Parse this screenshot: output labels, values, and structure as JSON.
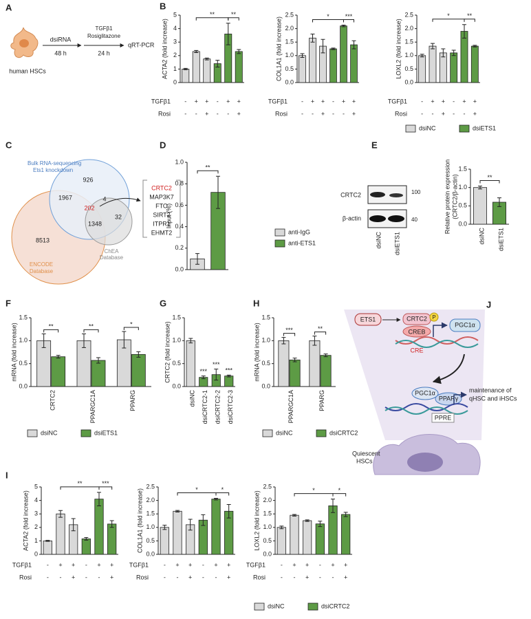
{
  "panel_labels": [
    "A",
    "B",
    "C",
    "D",
    "E",
    "F",
    "G",
    "H",
    "I",
    "J"
  ],
  "panel_a": {
    "step1": "dsiRNA",
    "time1": "48 h",
    "treatment": [
      "TGFβ1",
      "Rosiglitazone"
    ],
    "time2": "24 h",
    "readout": "qRT-PCR",
    "cells": "human HSCs"
  },
  "panel_c": {
    "bulk_label": [
      "Bulk RNA-sequencing",
      "Ets1 knockdown"
    ],
    "encode_label": [
      "ENCODE",
      "Database"
    ],
    "chea_label": [
      "ChEA",
      "Database"
    ],
    "counts": {
      "bulk_only": 926,
      "bulk_encode": 1967,
      "bulk_chea": 4,
      "all_three": 202,
      "chea_only": 32,
      "encode_chea": 1348,
      "encode_only": 8513
    },
    "genes": [
      "CRTC2",
      "MAP3K7",
      "FTO",
      "SIRT2",
      "ITPR1",
      "EHMT2"
    ]
  },
  "panel_e": {
    "proteins": [
      "CRTC2",
      "β-actin"
    ],
    "markers": [
      "100",
      "40"
    ],
    "lanes": [
      "dsiNC",
      "dsiETS1"
    ]
  },
  "panel_j": {
    "ets1": "ETS1",
    "crtc2": "CRTC2",
    "phospho": "P",
    "creb": "CREB",
    "pgc1a": "PGC1α",
    "cre": "CRE",
    "pgc1a_2": "PGC1α",
    "pparg": "PPARγ",
    "ppre": "PPRE",
    "outcome": [
      "maintenance of",
      "qHSC and iHSCs"
    ],
    "cell": [
      "Quiescent",
      "HSCs"
    ]
  },
  "chart_data": [
    {
      "type": "bar",
      "ylabel": "ACTA2 (fold increase)",
      "ylim": [
        0,
        5
      ],
      "yticks": [
        0,
        1,
        2,
        3,
        4,
        5
      ],
      "categories": [
        null,
        null,
        null,
        null,
        null,
        null
      ],
      "series": [
        {
          "color": "#d9d9d9",
          "values": [
            1.0,
            2.3,
            1.75,
            null,
            null,
            null
          ],
          "errors": [
            0.05,
            0.08,
            0.07,
            null,
            null,
            null
          ]
        },
        {
          "color": "#5d9b45",
          "values": [
            null,
            null,
            null,
            1.4,
            3.6,
            2.3
          ],
          "errors": [
            null,
            null,
            null,
            0.25,
            0.8,
            0.15
          ]
        }
      ],
      "conditions": [
        {
          "name": "TGFβ1",
          "marks": [
            "-",
            "+",
            "+",
            "-",
            "+",
            "+"
          ]
        },
        {
          "name": "Rosi",
          "marks": [
            "-",
            "-",
            "+",
            "-",
            "-",
            "+"
          ]
        }
      ],
      "annotations": [
        {
          "from": 1,
          "to": 4,
          "label": "**"
        },
        {
          "from": 4,
          "to": 5,
          "label": "**"
        }
      ]
    },
    {
      "type": "bar",
      "ylabel": "COL1A1 (fold increase)",
      "ylim": [
        0,
        2.5
      ],
      "yticks": [
        {
          "value": 0,
          "label": "0.0"
        },
        0.5,
        {
          "value": 1,
          "label": "1.0"
        },
        1.5,
        {
          "value": 2,
          "label": "2.0"
        },
        2.5
      ],
      "categories": [
        null,
        null,
        null,
        null,
        null,
        null
      ],
      "series": [
        {
          "color": "#d9d9d9",
          "values": [
            1.0,
            1.65,
            1.35,
            null,
            null,
            null
          ],
          "errors": [
            0.07,
            0.15,
            0.25,
            null,
            null,
            null
          ]
        },
        {
          "color": "#5d9b45",
          "values": [
            null,
            null,
            null,
            1.25,
            2.1,
            1.4
          ],
          "errors": [
            null,
            null,
            null,
            0.03,
            0.03,
            0.15
          ]
        }
      ],
      "conditions": [
        {
          "name": "TGFβ1",
          "marks": [
            "-",
            "+",
            "+",
            "-",
            "+",
            "+"
          ]
        },
        {
          "name": "Rosi",
          "marks": [
            "-",
            "-",
            "+",
            "-",
            "-",
            "+"
          ]
        }
      ],
      "annotations": [
        {
          "from": 1,
          "to": 4,
          "label": "*"
        },
        {
          "from": 4,
          "to": 5,
          "label": "***"
        }
      ]
    },
    {
      "type": "bar",
      "ylabel": "LOXL2 (fold increase)",
      "ylim": [
        0,
        2.5
      ],
      "yticks": [
        {
          "value": 0,
          "label": "0.0"
        },
        0.5,
        {
          "value": 1,
          "label": "1.0"
        },
        1.5,
        {
          "value": 2,
          "label": "2.0"
        },
        2.5
      ],
      "categories": [
        null,
        null,
        null,
        null,
        null,
        null
      ],
      "series": [
        {
          "name": "dsiNC",
          "color": "#d9d9d9",
          "values": [
            1.0,
            1.35,
            1.1,
            null,
            null,
            null
          ],
          "errors": [
            0.05,
            0.1,
            0.15,
            null,
            null,
            null
          ]
        },
        {
          "name": "dsiETS1",
          "color": "#5d9b45",
          "values": [
            null,
            null,
            null,
            1.1,
            1.9,
            1.35
          ],
          "errors": [
            null,
            null,
            null,
            0.1,
            0.25,
            0.03
          ]
        }
      ],
      "conditions": [
        {
          "name": "TGFβ1",
          "marks": [
            "-",
            "+",
            "+",
            "-",
            "+",
            "+"
          ]
        },
        {
          "name": "Rosi",
          "marks": [
            "-",
            "-",
            "+",
            "-",
            "-",
            "+"
          ]
        }
      ],
      "annotations": [
        {
          "from": 1,
          "to": 4,
          "label": "*"
        },
        {
          "from": 4,
          "to": 5,
          "label": "**"
        }
      ],
      "legend": "bottom"
    },
    {
      "type": "bar",
      "ylabel": "Input (%)",
      "ylim": [
        0,
        1
      ],
      "yticks": [
        {
          "value": 0,
          "label": "0.0"
        },
        0.2,
        0.4,
        0.6,
        0.8,
        {
          "value": 1,
          "label": "1.0"
        }
      ],
      "categories": [
        null,
        null
      ],
      "series": [
        {
          "name": "anti-IgG",
          "color": "#d9d9d9",
          "values": [
            0.1,
            null
          ],
          "errors": [
            0.05,
            null
          ]
        },
        {
          "name": "anti-ETS1",
          "color": "#5d9b45",
          "values": [
            null,
            0.72
          ],
          "errors": [
            null,
            0.15
          ]
        }
      ],
      "annotations": [
        {
          "from": 0,
          "to": 1,
          "label": "**"
        }
      ],
      "legend": "right"
    },
    {
      "type": "bar",
      "ylabel": [
        "Relative protein expression",
        "(CRTC2/β-actin)"
      ],
      "ylim": [
        0,
        1.5
      ],
      "yticks": [
        {
          "value": 0,
          "label": "0.0"
        },
        0.5,
        {
          "value": 1,
          "label": "1.0"
        },
        1.5
      ],
      "categories": [
        "dsiNC",
        "dsiETS1"
      ],
      "series": [
        {
          "color": "#d9d9d9",
          "values": [
            1.0,
            null
          ],
          "errors": [
            0.04,
            null
          ]
        },
        {
          "color": "#5d9b45",
          "values": [
            null,
            0.6
          ],
          "errors": [
            null,
            0.12
          ]
        }
      ],
      "annotations": [
        {
          "from": 0,
          "to": 1,
          "label": "**"
        }
      ]
    },
    {
      "type": "bar",
      "ylabel": "mRNA (fold increase)",
      "ylim": [
        0,
        1.5
      ],
      "yticks": [
        {
          "value": 0,
          "label": "0.0"
        },
        0.5,
        {
          "value": 1,
          "label": "1.0"
        },
        1.5
      ],
      "categories": [
        "CRTC2",
        "PPARGC1A",
        "PPARG"
      ],
      "series": [
        {
          "name": "dsiNC",
          "color": "#d9d9d9",
          "values": [
            1.0,
            1.0,
            1.02
          ],
          "errors": [
            0.15,
            0.15,
            0.18
          ]
        },
        {
          "name": "dsiETS1",
          "color": "#5d9b45",
          "values": [
            0.65,
            0.57,
            0.7
          ],
          "errors": [
            0.03,
            0.06,
            0.06
          ]
        }
      ],
      "annotations": [
        {
          "category": 0,
          "label": "**"
        },
        {
          "category": 1,
          "label": "**"
        },
        {
          "category": 2,
          "label": "*"
        }
      ],
      "legend": "bottom"
    },
    {
      "type": "bar",
      "ylabel": "CRTC2 (fold increase)",
      "ylim": [
        0,
        1.5
      ],
      "yticks": [
        {
          "value": 0,
          "label": "0.0"
        },
        0.5,
        {
          "value": 1,
          "label": "1.0"
        },
        1.5
      ],
      "categories": [
        "dsiNC",
        "dsiCRTC2-1",
        "dsiCRTC2-2",
        "dsiCRTC2-3"
      ],
      "series": [
        {
          "color": "#d9d9d9",
          "values": [
            1.0,
            null,
            null,
            null
          ],
          "errors": [
            0.05,
            null,
            null,
            null
          ]
        },
        {
          "color": "#5d9b45",
          "values": [
            null,
            0.2,
            0.26,
            0.23
          ],
          "errors": [
            null,
            0.03,
            0.12,
            0.02
          ]
        }
      ],
      "annotations": [
        {
          "category": 1,
          "label": "***"
        },
        {
          "category": 2,
          "label": "***"
        },
        {
          "category": 3,
          "label": "***"
        }
      ]
    },
    {
      "type": "bar",
      "ylabel": "mRNA (fold increase)",
      "ylim": [
        0,
        1.5
      ],
      "yticks": [
        {
          "value": 0,
          "label": "0.0"
        },
        0.5,
        {
          "value": 1,
          "label": "1.0"
        },
        1.5
      ],
      "categories": [
        "PPARGC1A",
        "PPARG"
      ],
      "series": [
        {
          "name": "dsiNC",
          "color": "#d9d9d9",
          "values": [
            1.0,
            1.0
          ],
          "errors": [
            0.07,
            0.1
          ]
        },
        {
          "name": "dsiCRTC2",
          "color": "#5d9b45",
          "values": [
            0.58,
            0.68
          ],
          "errors": [
            0.04,
            0.03
          ]
        }
      ],
      "annotations": [
        {
          "category": 0,
          "label": "***"
        },
        {
          "category": 1,
          "label": "**"
        }
      ],
      "legend": "bottom"
    },
    {
      "type": "bar",
      "ylabel": "ACTA2 (fold increase)",
      "ylim": [
        0,
        5
      ],
      "yticks": [
        0,
        1,
        2,
        3,
        4,
        5
      ],
      "categories": [
        null,
        null,
        null,
        null,
        null,
        null
      ],
      "series": [
        {
          "color": "#d9d9d9",
          "values": [
            1.0,
            3.0,
            2.2,
            null,
            null,
            null
          ],
          "errors": [
            0.04,
            0.25,
            0.45,
            null,
            null,
            null
          ]
        },
        {
          "color": "#5d9b45",
          "values": [
            null,
            null,
            null,
            1.15,
            4.1,
            2.25
          ],
          "errors": [
            null,
            null,
            null,
            0.1,
            0.5,
            0.25
          ]
        }
      ],
      "conditions": [
        {
          "name": "TGFβ1",
          "marks": [
            "-",
            "+",
            "+",
            "-",
            "+",
            "+"
          ]
        },
        {
          "name": "Rosi",
          "marks": [
            "-",
            "-",
            "+",
            "-",
            "-",
            "+"
          ]
        }
      ],
      "annotations": [
        {
          "from": 1,
          "to": 4,
          "label": "**"
        },
        {
          "from": 4,
          "to": 5,
          "label": "***"
        }
      ]
    },
    {
      "type": "bar",
      "ylabel": "COL1A1 (fold increase)",
      "ylim": [
        0,
        2.5
      ],
      "yticks": [
        {
          "value": 0,
          "label": "0.0"
        },
        0.5,
        {
          "value": 1,
          "label": "1.0"
        },
        1.5,
        {
          "value": 2,
          "label": "2.0"
        },
        2.5
      ],
      "categories": [
        null,
        null,
        null,
        null,
        null,
        null
      ],
      "series": [
        {
          "color": "#d9d9d9",
          "values": [
            1.0,
            1.6,
            1.1,
            null,
            null,
            null
          ],
          "errors": [
            0.08,
            0.03,
            0.2,
            null,
            null,
            null
          ]
        },
        {
          "color": "#5d9b45",
          "values": [
            null,
            null,
            null,
            1.27,
            2.05,
            1.6
          ],
          "errors": [
            null,
            null,
            null,
            0.2,
            0.03,
            0.25
          ]
        }
      ],
      "conditions": [
        {
          "name": "TGFβ1",
          "marks": [
            "-",
            "+",
            "+",
            "-",
            "+",
            "+"
          ]
        },
        {
          "name": "Rosi",
          "marks": [
            "-",
            "-",
            "+",
            "-",
            "-",
            "+"
          ]
        }
      ],
      "annotations": [
        {
          "from": 1,
          "to": 4,
          "label": "*"
        },
        {
          "from": 4,
          "to": 5,
          "label": "*"
        }
      ]
    },
    {
      "type": "bar",
      "ylabel": "LOXL2 (fold increase)",
      "ylim": [
        0,
        2.5
      ],
      "yticks": [
        {
          "value": 0,
          "label": "0.0"
        },
        0.5,
        {
          "value": 1,
          "label": "1.0"
        },
        1.5,
        {
          "value": 2,
          "label": "2.0"
        },
        2.5
      ],
      "categories": [
        null,
        null,
        null,
        null,
        null,
        null
      ],
      "series": [
        {
          "name": "dsiNC",
          "color": "#d9d9d9",
          "values": [
            1.0,
            1.45,
            1.25,
            null,
            null,
            null
          ],
          "errors": [
            0.05,
            0.03,
            0.03,
            null,
            null,
            null
          ]
        },
        {
          "name": "dsiCRTC2",
          "color": "#5d9b45",
          "values": [
            null,
            null,
            null,
            1.13,
            1.8,
            1.48
          ],
          "errors": [
            null,
            null,
            null,
            0.1,
            0.25,
            0.08
          ]
        }
      ],
      "conditions": [
        {
          "name": "TGFβ1",
          "marks": [
            "-",
            "+",
            "+",
            "-",
            "+",
            "+"
          ]
        },
        {
          "name": "Rosi",
          "marks": [
            "-",
            "-",
            "+",
            "-",
            "-",
            "+"
          ]
        }
      ],
      "annotations": [
        {
          "from": 1,
          "to": 4,
          "label": "*"
        },
        {
          "from": 4,
          "to": 5,
          "label": "*"
        }
      ],
      "legend": "bottom"
    }
  ]
}
